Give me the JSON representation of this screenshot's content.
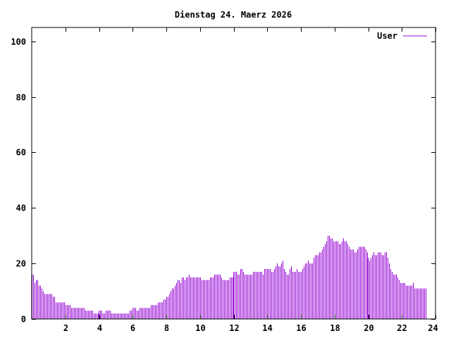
{
  "chart_data": {
    "type": "bar",
    "title": "Dienstag 24. Maerz 2026",
    "xlabel": "",
    "ylabel": "",
    "xlim": [
      0,
      24
    ],
    "ylim": [
      0,
      105
    ],
    "grid": false,
    "legend_position": "top-right",
    "x_ticks": [
      2,
      4,
      6,
      8,
      10,
      12,
      14,
      16,
      18,
      20,
      22,
      24
    ],
    "y_ticks": [
      0,
      20,
      40,
      60,
      80,
      100
    ],
    "interval_hours": 0.083333,
    "series": [
      {
        "name": "User",
        "color": "#9400d3",
        "values": [
          16,
          16,
          13,
          14,
          14,
          12,
          12,
          11,
          10,
          9,
          9,
          9,
          9,
          9,
          9,
          8,
          8,
          6,
          6,
          6,
          6,
          6,
          6,
          6,
          5,
          5,
          5,
          5,
          4,
          4,
          4,
          4,
          4,
          4,
          4,
          4,
          4,
          4,
          3,
          3,
          3,
          3,
          3,
          3,
          2,
          2,
          2,
          2,
          3,
          3,
          3,
          2,
          2,
          3,
          3,
          3,
          3,
          2,
          2,
          2,
          2,
          2,
          2,
          2,
          2,
          2,
          2,
          2,
          2,
          2,
          3,
          3,
          4,
          4,
          4,
          3,
          3,
          4,
          4,
          4,
          4,
          4,
          4,
          4,
          4,
          5,
          5,
          5,
          5,
          5,
          6,
          6,
          6,
          6,
          7,
          7,
          8,
          8,
          9,
          10,
          11,
          11,
          12,
          13,
          14,
          14,
          13,
          15,
          15,
          14,
          15,
          15,
          16,
          15,
          15,
          15,
          15,
          15,
          15,
          15,
          15,
          14,
          14,
          14,
          14,
          14,
          14,
          15,
          15,
          15,
          16,
          16,
          16,
          16,
          16,
          15,
          14,
          14,
          14,
          14,
          14,
          15,
          15,
          15,
          17,
          17,
          17,
          16,
          16,
          18,
          18,
          17,
          16,
          16,
          16,
          16,
          16,
          16,
          17,
          17,
          17,
          17,
          17,
          17,
          17,
          16,
          18,
          18,
          18,
          18,
          18,
          17,
          17,
          18,
          19,
          20,
          19,
          19,
          20,
          21,
          18,
          17,
          16,
          16,
          18,
          19,
          17,
          17,
          17,
          18,
          17,
          17,
          17,
          18,
          19,
          20,
          20,
          21,
          20,
          20,
          20,
          22,
          23,
          23,
          23,
          24,
          24,
          25,
          26,
          27,
          28,
          30,
          30,
          29,
          29,
          28,
          28,
          28,
          28,
          27,
          27,
          28,
          29,
          28,
          28,
          27,
          26,
          25,
          25,
          25,
          24,
          24,
          25,
          26,
          26,
          26,
          26,
          26,
          25,
          24,
          22,
          21,
          22,
          23,
          24,
          23,
          23,
          24,
          24,
          24,
          23,
          23,
          24,
          24,
          22,
          20,
          18,
          17,
          16,
          16,
          16,
          15,
          14,
          13,
          13,
          13,
          13,
          12,
          12,
          12,
          12,
          12,
          13,
          11,
          11,
          11,
          11,
          11,
          11,
          11,
          11,
          11
        ]
      }
    ]
  }
}
